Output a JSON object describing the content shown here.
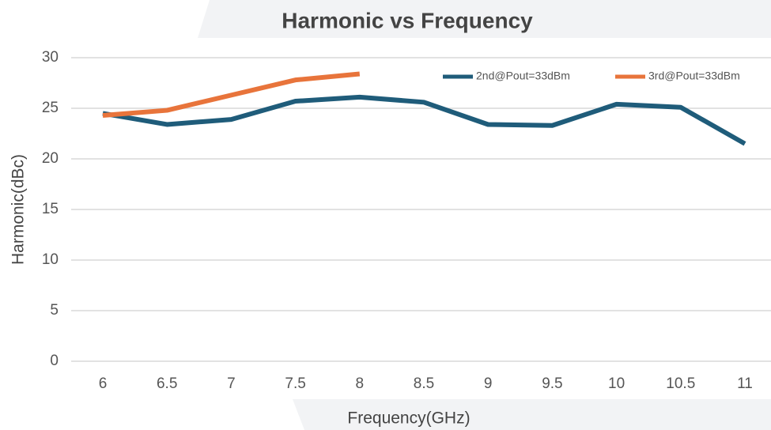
{
  "chart_data": {
    "type": "line",
    "title": "Harmonic vs Frequency",
    "x_label": "Frequency(GHz)",
    "y_label": "Harmonic(dBc)",
    "categories": [
      "6",
      "6.5",
      "7",
      "7.5",
      "8",
      "8.5",
      "9",
      "9.5",
      "10",
      "10.5",
      "11"
    ],
    "series": [
      {
        "name": "2nd@Pout=33dBm",
        "color": "#1f5c7a",
        "values": [
          24.5,
          23.4,
          23.9,
          25.7,
          26.1,
          25.6,
          23.4,
          23.3,
          25.4,
          25.1,
          21.5
        ]
      },
      {
        "name": "3rd@Pout=33dBm",
        "color": "#e8743b",
        "values": [
          24.3,
          24.8,
          26.3,
          27.8,
          28.4,
          null,
          null,
          null,
          null,
          null,
          null
        ]
      }
    ],
    "ylim": [
      0,
      30
    ],
    "yticks": [
      0,
      5,
      10,
      15,
      20,
      25,
      30
    ],
    "grid": true,
    "legend": "top-right"
  }
}
